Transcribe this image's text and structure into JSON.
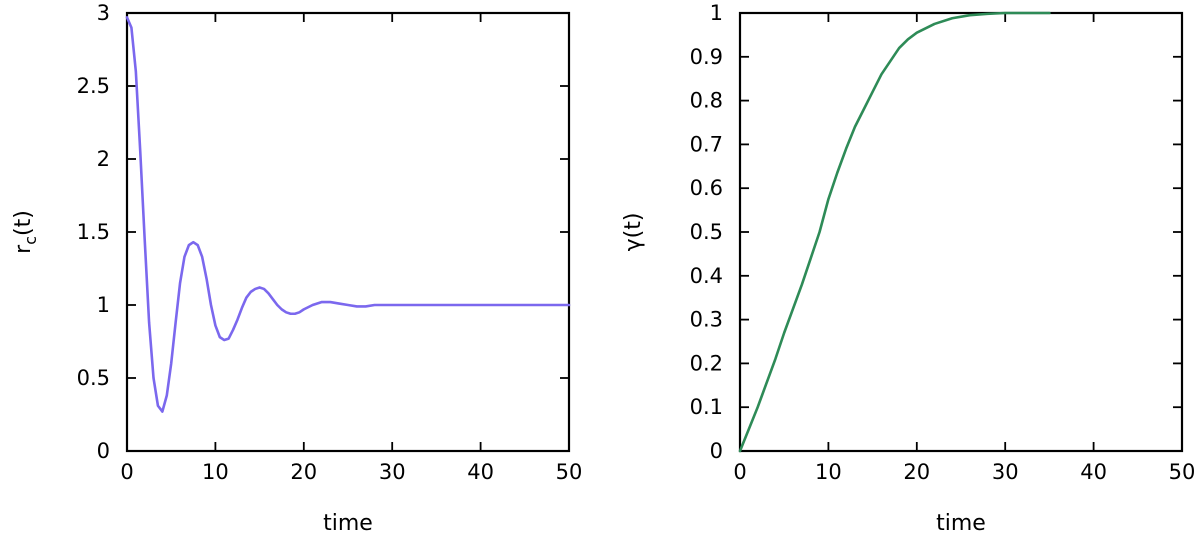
{
  "chart_data": [
    {
      "type": "line",
      "xlabel": "time",
      "ylabel": "r",
      "ylabel_subscript": "c",
      "ylabel_suffix": "(t)",
      "xlim": [
        0,
        50
      ],
      "ylim": [
        0,
        3
      ],
      "x_ticks": [
        "0",
        "10",
        "20",
        "30",
        "40",
        "50"
      ],
      "y_ticks": [
        "0",
        "0.5",
        "1",
        "1.5",
        "2",
        "2.5",
        "3"
      ],
      "grid": false,
      "color": "#7b68ee",
      "series": [
        {
          "x": [
            0,
            0.5,
            1,
            1.5,
            2,
            2.5,
            3,
            3.5,
            4,
            4.5,
            5,
            5.5,
            6,
            6.5,
            7,
            7.5,
            8,
            8.5,
            9,
            9.5,
            10,
            10.5,
            11,
            11.5,
            12,
            12.5,
            13,
            13.5,
            14,
            14.5,
            15,
            15.5,
            16,
            16.5,
            17,
            17.5,
            18,
            18.5,
            19,
            19.5,
            20,
            21,
            22,
            23,
            24,
            25,
            26,
            27,
            28,
            30,
            32,
            35,
            40,
            45,
            50
          ],
          "y": [
            2.97,
            2.9,
            2.6,
            2.05,
            1.45,
            0.88,
            0.5,
            0.31,
            0.27,
            0.38,
            0.6,
            0.88,
            1.15,
            1.33,
            1.41,
            1.43,
            1.41,
            1.33,
            1.18,
            1.0,
            0.86,
            0.78,
            0.76,
            0.77,
            0.83,
            0.9,
            0.98,
            1.05,
            1.09,
            1.11,
            1.12,
            1.11,
            1.08,
            1.04,
            1.0,
            0.97,
            0.95,
            0.94,
            0.94,
            0.95,
            0.97,
            1.0,
            1.02,
            1.02,
            1.01,
            1.0,
            0.99,
            0.99,
            1.0,
            1.0,
            1.0,
            1.0,
            1.0,
            1.0,
            1.0
          ]
        }
      ]
    },
    {
      "type": "line",
      "xlabel": "time",
      "ylabel": "γ(t)",
      "xlim": [
        0,
        50
      ],
      "ylim": [
        0,
        1
      ],
      "x_ticks": [
        "0",
        "10",
        "20",
        "30",
        "40",
        "50"
      ],
      "y_ticks": [
        "0",
        "0.1",
        "0.2",
        "0.3",
        "0.4",
        "0.5",
        "0.6",
        "0.7",
        "0.8",
        "0.9",
        "1"
      ],
      "grid": false,
      "color": "#2e8b57",
      "series": [
        {
          "x": [
            0,
            1,
            2,
            3,
            4,
            5,
            6,
            7,
            8,
            9,
            10,
            11,
            12,
            13,
            14,
            15,
            16,
            17,
            18,
            19,
            20,
            22,
            24,
            26,
            28,
            30,
            32,
            35
          ],
          "y": [
            0.0,
            0.05,
            0.1,
            0.155,
            0.21,
            0.27,
            0.325,
            0.38,
            0.44,
            0.5,
            0.575,
            0.635,
            0.69,
            0.74,
            0.78,
            0.82,
            0.86,
            0.89,
            0.92,
            0.94,
            0.955,
            0.975,
            0.988,
            0.995,
            0.998,
            1.0,
            1.0,
            1.0
          ]
        }
      ]
    }
  ]
}
